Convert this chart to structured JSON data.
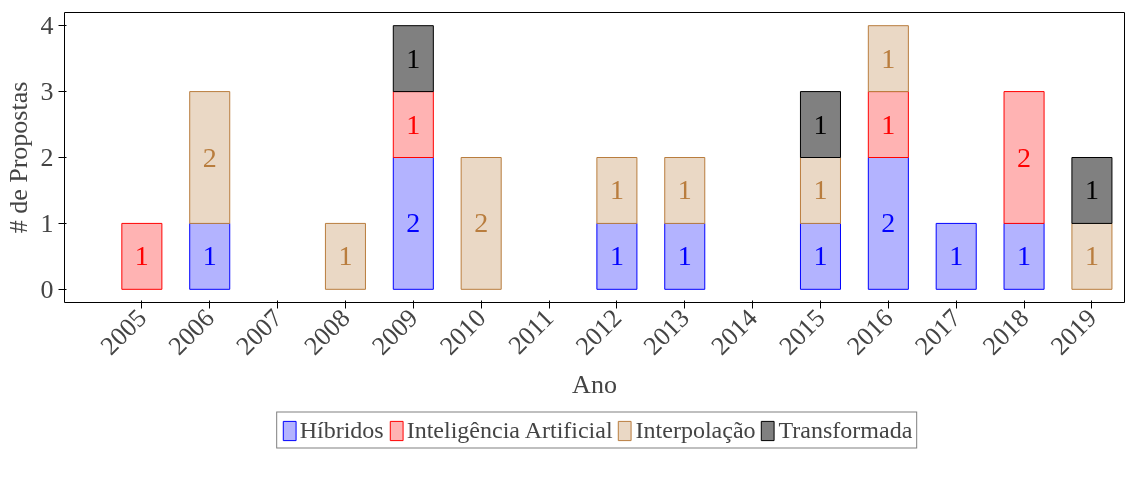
{
  "chart_data": {
    "type": "bar",
    "stacked": true,
    "xlabel": "Ano",
    "ylabel": "# de Propostas",
    "categories": [
      "2005",
      "2006",
      "2007",
      "2008",
      "2009",
      "2010",
      "2011",
      "2012",
      "2013",
      "2014",
      "2015",
      "2016",
      "2017",
      "2018",
      "2019"
    ],
    "series": [
      {
        "name": "Híbridos",
        "color": "#b3b3ff",
        "values": [
          null,
          1,
          null,
          null,
          2,
          null,
          null,
          1,
          1,
          null,
          1,
          2,
          1,
          1,
          null
        ]
      },
      {
        "name": "Inteligência Artificial",
        "color": "#ffb3b3",
        "values": [
          1,
          null,
          null,
          null,
          1,
          null,
          null,
          null,
          null,
          null,
          null,
          1,
          null,
          2,
          null
        ]
      },
      {
        "name": "Interpolação",
        "color": "#ead8c5",
        "values": [
          null,
          2,
          null,
          1,
          null,
          2,
          null,
          1,
          1,
          null,
          1,
          1,
          null,
          null,
          1
        ]
      },
      {
        "name": "Transformada",
        "color": "#808080",
        "values": [
          null,
          null,
          null,
          null,
          1,
          null,
          null,
          null,
          null,
          null,
          1,
          null,
          null,
          null,
          1
        ]
      }
    ],
    "ylim": [
      -0.2,
      4.2
    ],
    "yticks": [
      0,
      1,
      2,
      3,
      4
    ],
    "grid": false,
    "legend": "bottom",
    "data_labels": true
  }
}
